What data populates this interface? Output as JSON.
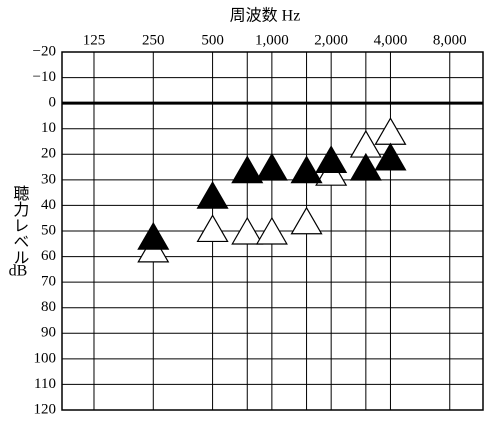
{
  "chart_data": {
    "type": "scatter",
    "title": "周波数 Hz",
    "y_label": "聴力レベル",
    "y_unit": "dB",
    "log_x": true,
    "y_inverted": true,
    "grid": true,
    "xlim": [
      86,
      11800
    ],
    "xticks": [
      125,
      250,
      500,
      {
        "value": 1000,
        "label": "1,000"
      },
      {
        "value": 2000,
        "label": "2,000"
      },
      {
        "value": 4000,
        "label": "4,000"
      },
      {
        "value": 8000,
        "label": "8,000"
      }
    ],
    "xminor": [
      750,
      1500,
      3000
    ],
    "ylim": [
      -20,
      120
    ],
    "yticks": [
      {
        "value": -20,
        "label": "−20"
      },
      {
        "value": -10,
        "label": "−10"
      },
      0,
      10,
      20,
      30,
      40,
      50,
      60,
      70,
      80,
      90,
      100,
      110,
      120
    ],
    "ref_line": 0,
    "x": [
      250,
      500,
      750,
      1000,
      1500,
      2000,
      3000,
      4000
    ],
    "series": [
      {
        "color": "#000000",
        "values": [
          52,
          36,
          26,
          25,
          26,
          22,
          25,
          21
        ]
      },
      {
        "color": "#ffffff",
        "values": [
          57,
          49,
          50,
          50,
          46,
          27,
          16,
          11
        ]
      }
    ]
  }
}
